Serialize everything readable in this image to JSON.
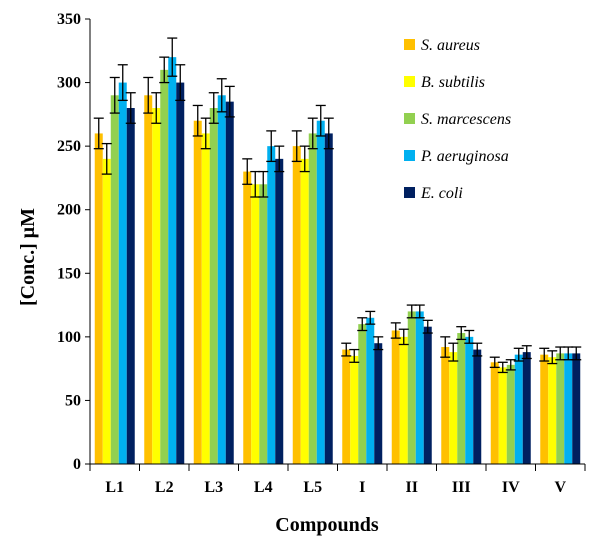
{
  "chart_data": {
    "type": "bar",
    "xlabel": "Compounds",
    "ylabel": "[Conc.] μM",
    "ylim": [
      0,
      350
    ],
    "yticks": [
      0,
      50,
      100,
      150,
      200,
      250,
      300,
      350
    ],
    "grid": false,
    "legend_position": "top-right",
    "categories": [
      "L1",
      "L2",
      "L3",
      "L4",
      "L5",
      "I",
      "II",
      "III",
      "IV",
      "V"
    ],
    "series": [
      {
        "name": "S. aureus",
        "color": "#FFC000",
        "values": [
          260,
          290,
          270,
          230,
          250,
          90,
          105,
          92,
          80,
          86
        ],
        "errors": [
          12,
          14,
          12,
          10,
          12,
          5,
          6,
          8,
          4,
          5
        ]
      },
      {
        "name": "B. subtilis",
        "color": "#FFFF00",
        "values": [
          240,
          280,
          260,
          220,
          240,
          85,
          100,
          88,
          76,
          84
        ],
        "errors": [
          12,
          12,
          12,
          10,
          10,
          5,
          6,
          7,
          4,
          5
        ]
      },
      {
        "name": "S. marcescens",
        "color": "#92D050",
        "values": [
          290,
          310,
          280,
          220,
          260,
          110,
          120,
          103,
          78,
          87
        ],
        "errors": [
          14,
          10,
          12,
          10,
          12,
          5,
          5,
          5,
          4,
          5
        ]
      },
      {
        "name": "P. aeruginosa",
        "color": "#00B0F0",
        "values": [
          300,
          320,
          290,
          250,
          270,
          115,
          120,
          100,
          86,
          87
        ],
        "errors": [
          14,
          15,
          13,
          12,
          12,
          5,
          5,
          5,
          5,
          5
        ]
      },
      {
        "name": "E. coli",
        "color": "#002060",
        "values": [
          280,
          300,
          285,
          240,
          260,
          95,
          108,
          90,
          88,
          87
        ],
        "errors": [
          12,
          14,
          12,
          10,
          12,
          5,
          5,
          5,
          5,
          5
        ]
      }
    ]
  }
}
